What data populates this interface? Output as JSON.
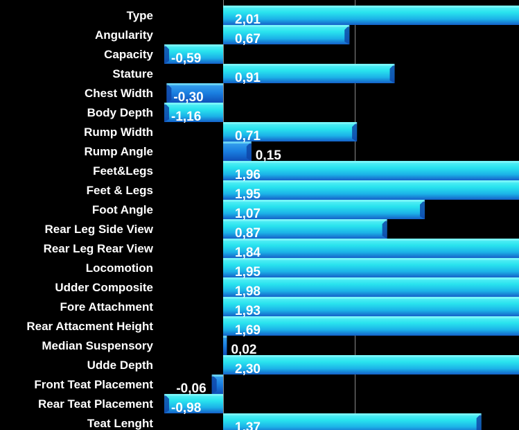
{
  "chart_data": {
    "type": "bar",
    "orientation": "horizontal",
    "categories": [
      "Type",
      "Angularity",
      "Capacity",
      "Stature",
      "Chest Width",
      "Body Depth",
      "Rump Width",
      "Rump Angle",
      "Feet&Legs",
      "Feet & Legs",
      "Foot Angle",
      "Rear Leg Side View",
      "Rear Leg Rear View",
      "Locomotion",
      "Udder Composite",
      "Fore Attachment",
      "Rear Attacment Height",
      "Median Suspensory",
      "Udde Depth",
      "Front Teat Placement",
      "Rear Teat Placement",
      "Teat Lenght"
    ],
    "values": [
      2.01,
      0.67,
      -0.59,
      0.91,
      -0.3,
      -1.16,
      0.71,
      0.15,
      1.96,
      1.95,
      1.07,
      0.87,
      1.84,
      1.95,
      1.98,
      1.93,
      1.69,
      0.02,
      2.3,
      -0.06,
      -0.98,
      1.37
    ],
    "value_labels": [
      "2,01",
      "0,67",
      "-0,59",
      "0,91",
      "-0,30",
      "-1,16",
      "0,71",
      "0,15",
      "1,96",
      "1,95",
      "1,07",
      "0,87",
      "1,84",
      "1,95",
      "1,98",
      "1,93",
      "1,69",
      "0,02",
      "2,30",
      "-0,06",
      "-0,98",
      "1,37"
    ],
    "xlim": [
      -1.16,
      1.5
    ],
    "gridlines": [
      0,
      0.7
    ],
    "grid": true,
    "legend": "none",
    "colors": {
      "background": "#000000",
      "bar_light": "#29e3ee",
      "bar_mid": "#1aa8e6",
      "bar_dark": "#1560c8",
      "gridline": "#8a8a8a",
      "label": "#ffffff"
    }
  }
}
